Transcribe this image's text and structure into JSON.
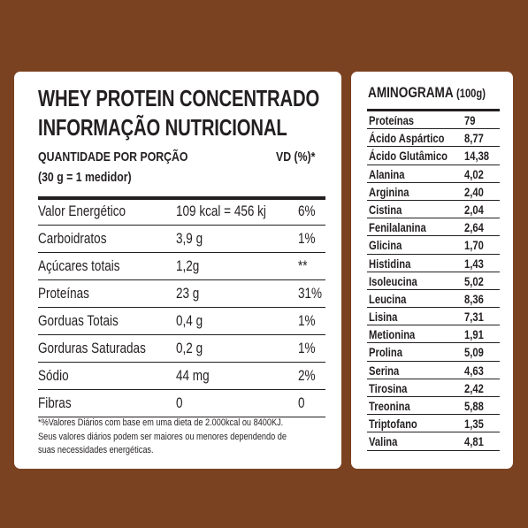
{
  "nutrition": {
    "title_line1": "WHEY PROTEIN CONCENTRADO",
    "title_line2": "INFORMAÇÃO NUTRICIONAL",
    "serving_label": "QUANTIDADE POR PORÇÃO",
    "serving_size": "(30 g = 1 medidor)",
    "vd_header": "VD (%)*",
    "rows": [
      {
        "name": "Valor Energético",
        "amount": "109 kcal = 456 kj",
        "vd": "6%"
      },
      {
        "name": "Carboidratos",
        "amount": "3,9 g",
        "vd": "1%"
      },
      {
        "name": "Açúcares totais",
        "amount": "1,2g",
        "vd": "**"
      },
      {
        "name": "Proteínas",
        "amount": "23 g",
        "vd": "31%"
      },
      {
        "name": "Gorduas Totais",
        "amount": "0,4 g",
        "vd": "1%"
      },
      {
        "name": "Gorduras Saturadas",
        "amount": "0,2 g",
        "vd": "1%"
      },
      {
        "name": "Sódio",
        "amount": "44 mg",
        "vd": "2%"
      },
      {
        "name": "Fibras",
        "amount": "0",
        "vd": "0"
      }
    ],
    "footnote_line1": "*%Valores Diários com base em uma dieta de 2.000kcal ou 8400KJ.",
    "footnote_line2": "Seus valores diários podem ser maiores ou menores dependendo de",
    "footnote_line3": "suas necessidades energéticas."
  },
  "aminogram": {
    "title": "AMINOGRAMA",
    "unit": "(100g)",
    "rows": [
      {
        "name": "Proteínas",
        "value": "79"
      },
      {
        "name": "Ácido Aspártico",
        "value": "8,77"
      },
      {
        "name": "Ácido Glutâmico",
        "value": "14,38"
      },
      {
        "name": "Alanina",
        "value": "4,02"
      },
      {
        "name": "Arginina",
        "value": "2,40"
      },
      {
        "name": "Cistina",
        "value": "2,04"
      },
      {
        "name": "Fenilalanina",
        "value": "2,64"
      },
      {
        "name": "Glicina",
        "value": "1,70"
      },
      {
        "name": "Histidina",
        "value": "1,43"
      },
      {
        "name": "Isoleucina",
        "value": "5,02"
      },
      {
        "name": "Leucina",
        "value": "8,36"
      },
      {
        "name": "Lisina",
        "value": "7,31"
      },
      {
        "name": "Metionina",
        "value": "1,91"
      },
      {
        "name": "Prolina",
        "value": "5,09"
      },
      {
        "name": "Serina",
        "value": "4,63"
      },
      {
        "name": "Tirosina",
        "value": "2,42"
      },
      {
        "name": "Treonina",
        "value": "5,88"
      },
      {
        "name": "Triptofano",
        "value": "1,35"
      },
      {
        "name": "Valina",
        "value": "4,81"
      }
    ]
  },
  "colors": {
    "background": "#7b4221",
    "panel": "#ffffff",
    "text": "#231f20"
  }
}
